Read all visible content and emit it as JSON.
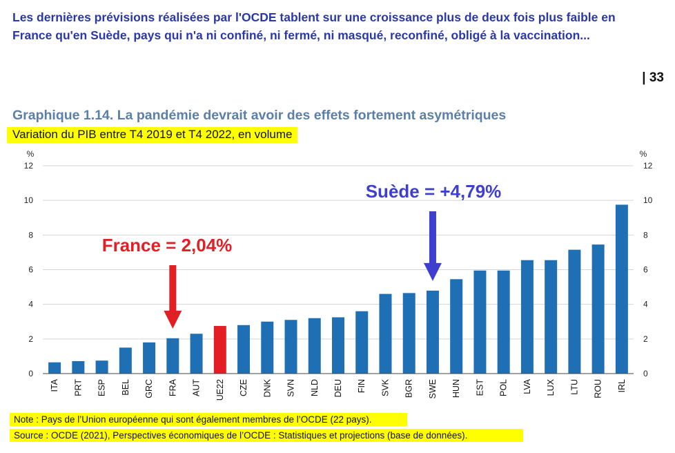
{
  "intro_text": "Les dernières prévisions réalisées par l'OCDE tablent sur une croissance plus de deux fois plus faible en France qu'en Suède, pays qui n'a ni confiné, ni fermé, ni masqué, reconfiné, obligé à la vaccination...",
  "page_number": "| 33",
  "chart_data": {
    "type": "bar",
    "title": "Graphique 1.14. La pandémie devrait avoir des effets fortement asymétriques",
    "subtitle": "Variation du PIB entre T4 2019 et T4 2022, en volume",
    "ylabel": "%",
    "ylim": [
      0,
      12
    ],
    "yticks": [
      0,
      2,
      4,
      6,
      8,
      10,
      12
    ],
    "grid": true,
    "categories": [
      "ITA",
      "PRT",
      "ESP",
      "BEL",
      "GRC",
      "FRA",
      "AUT",
      "UE22",
      "CZE",
      "DNK",
      "SVN",
      "NLD",
      "DEU",
      "FIN",
      "SVK",
      "BGR",
      "SWE",
      "HUN",
      "EST",
      "POL",
      "LVA",
      "LUX",
      "LTU",
      "ROU",
      "IRL"
    ],
    "values": [
      0.65,
      0.72,
      0.75,
      1.5,
      1.8,
      2.04,
      2.3,
      2.75,
      2.8,
      3.0,
      3.1,
      3.2,
      3.25,
      3.6,
      4.6,
      4.65,
      4.79,
      5.45,
      5.95,
      5.95,
      6.55,
      6.55,
      7.15,
      7.45,
      9.75
    ],
    "colors": {
      "default": "#1f6fb5",
      "highlight": "#e31e24",
      "label_france": "#e31e24",
      "label_sweden": "#3f3fcf"
    },
    "highlight_category": "UE22",
    "annotations": [
      {
        "text": "France = 2,04%",
        "target": "FRA",
        "color": "#e31e24"
      },
      {
        "text": "Suède = +4,79%",
        "target": "SWE",
        "color": "#3f3fcf"
      }
    ]
  },
  "note": "Note : Pays de l’Union européenne qui sont également membres de l’OCDE (22 pays).",
  "source": "Source : OCDE (2021), Perspectives économiques de l’OCDE : Statistiques et projections (base de données)."
}
